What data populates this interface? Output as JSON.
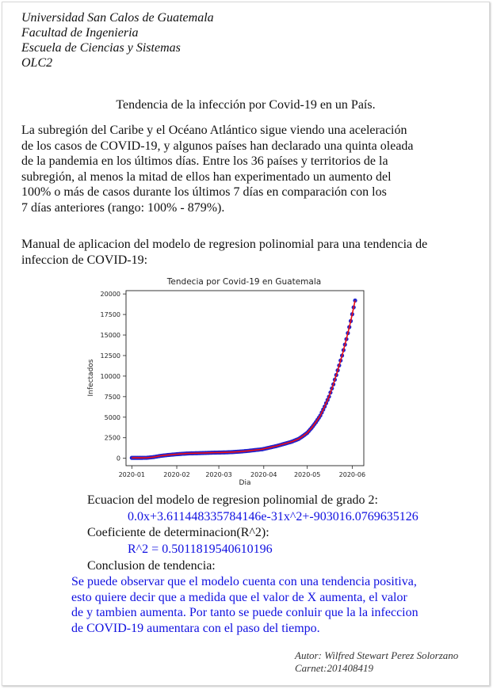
{
  "header": {
    "line1": "Universidad San Calos de Guatemala",
    "line2": "Facultad de Ingenieria",
    "line3": "Escuela de Ciencias y Sistemas",
    "line4": "OLC2"
  },
  "title": "Tendencia de la infección por Covid-19 en un País.",
  "intro": [
    "La subregión del Caribe y el Océano Atlántico sigue viendo una aceleración",
    "de los casos de COVID-19, y algunos países han declarado una quinta oleada",
    "de la pandemia en los últimos días. Entre los 36 países y territorios de la",
    "subregión, al menos la mitad de ellos han experimentado un aumento del",
    "100% o más de casos durante los últimos 7 días en comparación con los",
    "7 días anteriores (rango: 100% - 879%)."
  ],
  "manual": [
    "Manual de aplicacion del modelo de regresion polinomial para una tendencia de",
    "infeccion de COVID-19:"
  ],
  "results": {
    "equation_label": "Ecuacion del modelo de regresion polinomial de grado 2:",
    "equation_value": "0.0x+3.611448335784146e-31x^2+-903016.0769635126",
    "r2_label": "Coeficiente de determinacion(R^2):",
    "r2_value": "R^2 = 0.5011819540610196",
    "conclusion_label": "Conclusion de tendencia:",
    "conclusion_lines": [
      "Se puede observar que el modelo cuenta con una tendencia positiva,",
      "esto quiere decir que a medida que el valor de X aumenta, el valor",
      "de y tambien aumenta. Por tanto se puede conluir que la la infeccion",
      "de COVID-19 aumentara con el paso del tiempo."
    ]
  },
  "author": {
    "name": "Autor: Wilfred Stewart Perez Solorzano",
    "carnet": "Carnet:201408419"
  },
  "colors": {
    "points": "#2222cc",
    "fit_line": "#ee1111",
    "conclusion_text": "#1010e0"
  },
  "chart_data": {
    "type": "scatter",
    "title": "Tendecia por Covid-19 en Guatemala",
    "xlabel": "Dia",
    "ylabel": "Infectados",
    "x_ticks": [
      "2020-01",
      "2020-02",
      "2020-03",
      "2020-04",
      "2020-05",
      "2020-06"
    ],
    "y_ticks": [
      "0",
      "2500",
      "5000",
      "7500",
      "10000",
      "12500",
      "15000",
      "17500",
      "20000"
    ],
    "xlim": [
      "2019-12-28",
      "2020-06-09"
    ],
    "ylim": [
      -900,
      20400
    ],
    "grid": false,
    "series": [
      {
        "kind": "scatter",
        "color": "#2222cc",
        "x": [
          "2020-01-01",
          "2020-01-06",
          "2020-01-11",
          "2020-01-16",
          "2020-01-21",
          "2020-01-26",
          "2020-01-31",
          "2020-02-05",
          "2020-02-10",
          "2020-02-15",
          "2020-02-20",
          "2020-02-25",
          "2020-03-01",
          "2020-03-06",
          "2020-03-11",
          "2020-03-16",
          "2020-03-21",
          "2020-03-26",
          "2020-03-31",
          "2020-04-05",
          "2020-04-10",
          "2020-04-15",
          "2020-04-20",
          "2020-04-25",
          "2020-04-28",
          "2020-05-01",
          "2020-05-04",
          "2020-05-07",
          "2020-05-10",
          "2020-05-13",
          "2020-05-16",
          "2020-05-19",
          "2020-05-22",
          "2020-05-25",
          "2020-05-28",
          "2020-05-31",
          "2020-06-03"
        ],
        "y": [
          50,
          50,
          60,
          150,
          300,
          400,
          480,
          550,
          600,
          620,
          650,
          680,
          700,
          720,
          760,
          820,
          900,
          1000,
          1100,
          1300,
          1500,
          1750,
          2000,
          2350,
          2700,
          3100,
          3700,
          4400,
          5200,
          6300,
          7500,
          9000,
          10700,
          12500,
          14500,
          16700,
          19200
        ]
      },
      {
        "kind": "line",
        "color": "#ee1111",
        "x": [
          "2020-01-01",
          "2020-01-06",
          "2020-01-11",
          "2020-01-16",
          "2020-01-21",
          "2020-01-26",
          "2020-01-31",
          "2020-02-05",
          "2020-02-10",
          "2020-02-15",
          "2020-02-20",
          "2020-02-25",
          "2020-03-01",
          "2020-03-06",
          "2020-03-11",
          "2020-03-16",
          "2020-03-21",
          "2020-03-26",
          "2020-03-31",
          "2020-04-05",
          "2020-04-10",
          "2020-04-15",
          "2020-04-20",
          "2020-04-25",
          "2020-04-28",
          "2020-05-01",
          "2020-05-04",
          "2020-05-07",
          "2020-05-10",
          "2020-05-13",
          "2020-05-16",
          "2020-05-19",
          "2020-05-22",
          "2020-05-25",
          "2020-05-28",
          "2020-05-31",
          "2020-06-03"
        ],
        "y": [
          50,
          50,
          60,
          150,
          300,
          400,
          480,
          550,
          600,
          620,
          650,
          680,
          700,
          720,
          760,
          820,
          900,
          1000,
          1100,
          1300,
          1500,
          1750,
          2000,
          2350,
          2700,
          3100,
          3700,
          4400,
          5200,
          6300,
          7500,
          9000,
          10700,
          12500,
          14500,
          16700,
          19200
        ]
      }
    ]
  }
}
